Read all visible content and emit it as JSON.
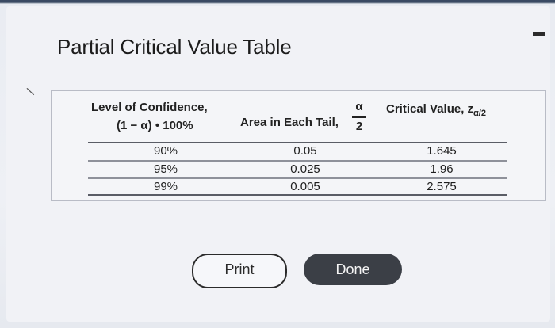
{
  "title": "Partial Critical Value Table",
  "side_mark": "\\",
  "table": {
    "headers": {
      "level_line1": "Level of Confidence,",
      "level_line2": "(1 − α) • 100%",
      "area": "Area in Each Tail,",
      "area_frac_num": "α",
      "area_frac_den": "2",
      "crit": "Critical Value, z",
      "crit_sub": "α/2"
    },
    "rows": [
      {
        "level": "90%",
        "area": "0.05",
        "crit": "1.645"
      },
      {
        "level": "95%",
        "area": "0.025",
        "crit": "1.96"
      },
      {
        "level": "99%",
        "area": "0.005",
        "crit": "2.575"
      }
    ]
  },
  "buttons": {
    "print": "Print",
    "done": "Done"
  },
  "colors": {
    "done_bg": "#3b3f46",
    "panel_bg": "#f1f2f6"
  }
}
